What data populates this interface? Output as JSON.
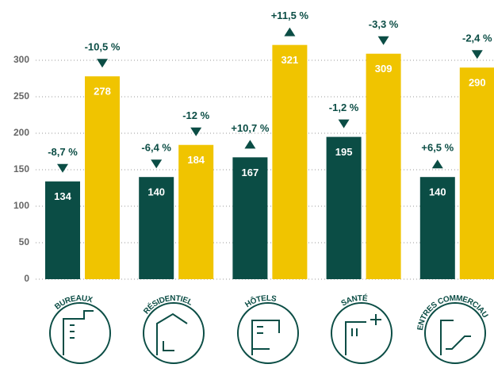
{
  "chart_data": {
    "type": "bar",
    "categories": [
      "BUREAUX",
      "RÉSIDENTIEL",
      "HÔTELS",
      "SANTÉ",
      "CENTRES COMMERCIAUX"
    ],
    "series": [
      {
        "color": "#0b4d45",
        "values": [
          134,
          140,
          167,
          195,
          140
        ],
        "annotations": [
          "-8,7 %",
          "-6,4 %",
          "+10,7 %",
          "-1,2 %",
          "+6,5  %"
        ]
      },
      {
        "color": "#f0c400",
        "values": [
          278,
          184,
          321,
          309,
          290
        ],
        "annotations": [
          "-10,5 %",
          "-12 %",
          "+11,5 %",
          "-3,3 %",
          "-2,4 %"
        ]
      }
    ],
    "ylim": [
      0,
      300
    ],
    "yticks": [
      0,
      50,
      100,
      150,
      200,
      250,
      300
    ],
    "grid": true
  }
}
